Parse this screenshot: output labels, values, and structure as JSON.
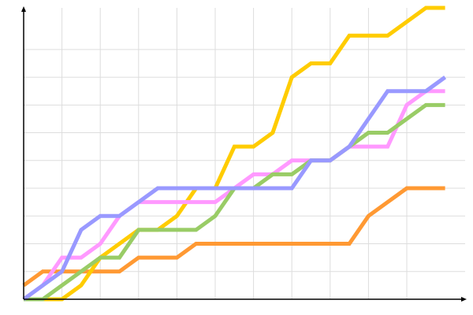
{
  "chart_data": {
    "type": "line",
    "title": "",
    "xlabel": "",
    "ylabel": "",
    "x": [
      0,
      1,
      2,
      3,
      4,
      5,
      6,
      7,
      8,
      9,
      10,
      11,
      12,
      13,
      14,
      15,
      16,
      17,
      18,
      19,
      20,
      21,
      22
    ],
    "xlim": [
      0,
      23
    ],
    "ylim": [
      0,
      21
    ],
    "grid": true,
    "x_grid_step": 2,
    "y_grid_step": 2,
    "series": [
      {
        "color": "#ff9933",
        "values": [
          1,
          2,
          2,
          2,
          2,
          2,
          3,
          3,
          3,
          4,
          4,
          4,
          4,
          4,
          4,
          4,
          4,
          4,
          6,
          7,
          8,
          8,
          8
        ]
      },
      {
        "color": "#ffcc00",
        "values": [
          0,
          0,
          0,
          1,
          3,
          4,
          5,
          5,
          6,
          8,
          8,
          11,
          11,
          12,
          16,
          17,
          17,
          19,
          19,
          19,
          20,
          21,
          21
        ]
      },
      {
        "color": "#ff99ff",
        "values": [
          0,
          1,
          3,
          3,
          4,
          6,
          7,
          7,
          7,
          7,
          7,
          8,
          9,
          9,
          10,
          10,
          10,
          11,
          11,
          11,
          14,
          15,
          15
        ]
      },
      {
        "color": "#99cc66",
        "values": [
          0,
          0,
          1,
          2,
          3,
          3,
          5,
          5,
          5,
          5,
          6,
          8,
          8,
          9,
          9,
          10,
          10,
          11,
          12,
          12,
          13,
          14,
          14
        ]
      },
      {
        "color": "#9999ff",
        "values": [
          0,
          1,
          2,
          5,
          6,
          6,
          7,
          8,
          8,
          8,
          8,
          8,
          8,
          8,
          8,
          10,
          10,
          11,
          13,
          15,
          15,
          15,
          16
        ]
      }
    ]
  }
}
